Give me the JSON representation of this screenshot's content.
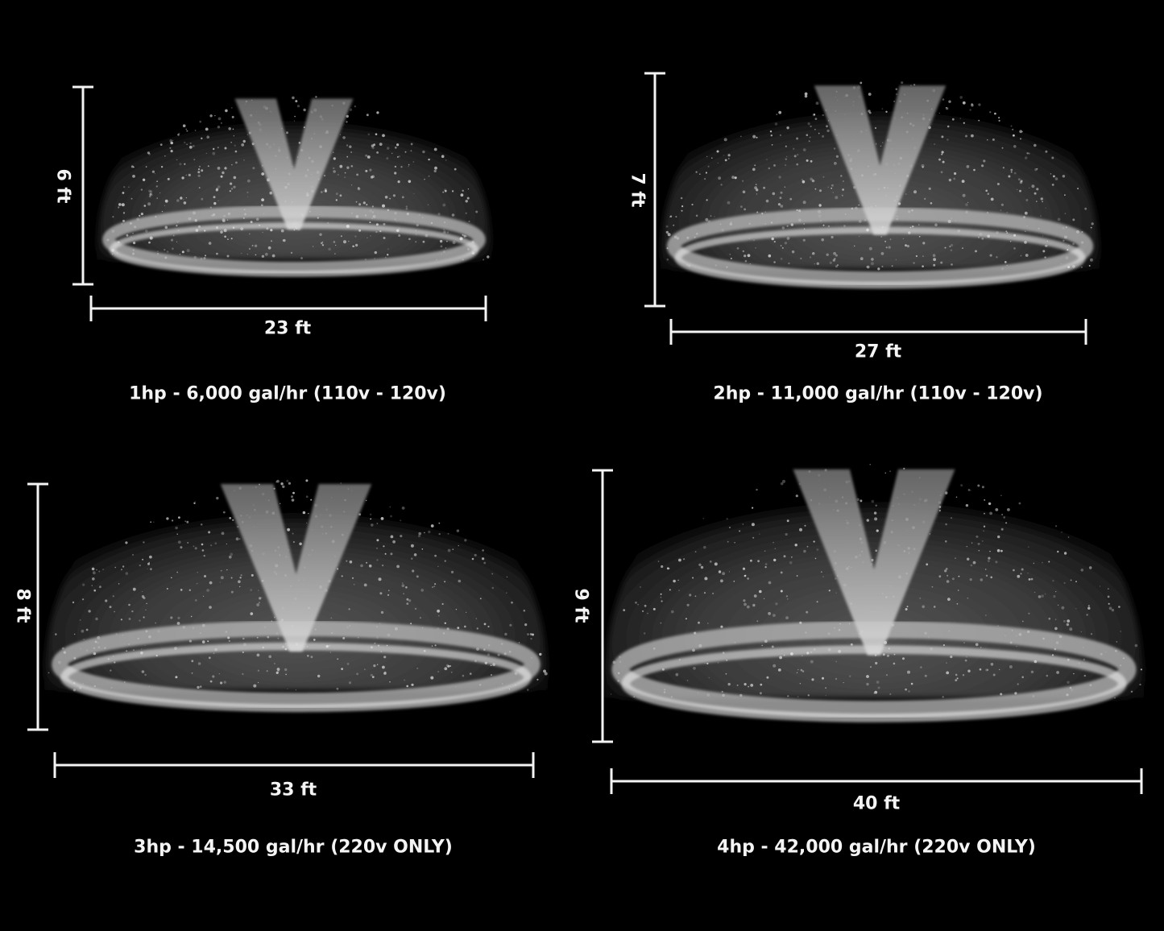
{
  "colors": {
    "background": "#000000",
    "text": "#f4f4f4",
    "spray": "#e8e8e8"
  },
  "panels": [
    {
      "height_label": "6 ft",
      "width_label": "23 ft",
      "caption": "1hp - 6,000 gal/hr (110v - 120v)"
    },
    {
      "height_label": "7 ft",
      "width_label": "27 ft",
      "caption": "2hp - 11,000 gal/hr (110v - 120v)"
    },
    {
      "height_label": "8 ft",
      "width_label": "33 ft",
      "caption": "3hp - 14,500 gal/hr (220v ONLY)"
    },
    {
      "height_label": "9 ft",
      "width_label": "40 ft",
      "caption": "4hp - 42,000 gal/hr (220v ONLY)"
    }
  ]
}
